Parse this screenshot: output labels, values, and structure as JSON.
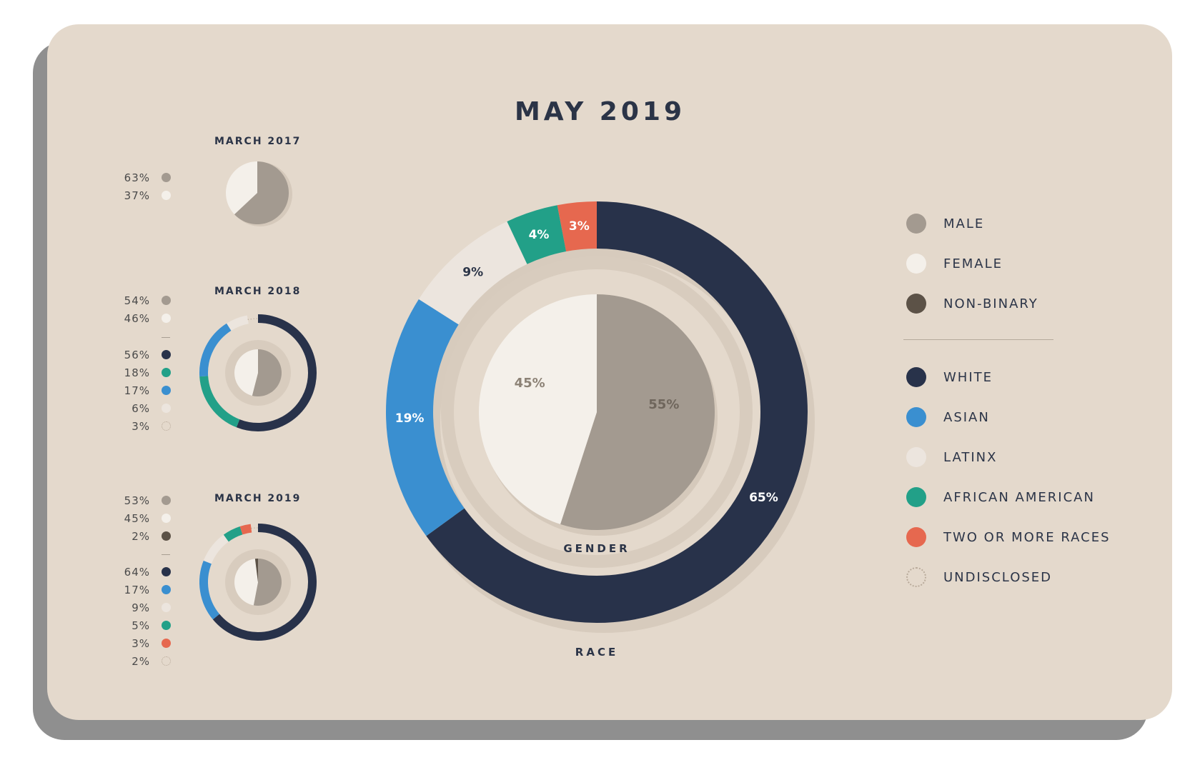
{
  "title": "MAY 2019",
  "colors": {
    "male": "#a39a90",
    "female": "#f4f0ea",
    "non_binary": "#5c5247",
    "white": "#28324a",
    "asian": "#3a8fd0",
    "latinx": "#ece5de",
    "african_american": "#22a088",
    "two_or_more": "#e6684f",
    "undisclosed": "#d9cfc4",
    "background": "#e4d9cc"
  },
  "legend": {
    "gender": [
      {
        "label": "MALE",
        "color": "#a39a90"
      },
      {
        "label": "FEMALE",
        "color": "#f4f0ea"
      },
      {
        "label": "NON-BINARY",
        "color": "#5c5247"
      }
    ],
    "race": [
      {
        "label": "WHITE",
        "color": "#28324a"
      },
      {
        "label": "ASIAN",
        "color": "#3a8fd0"
      },
      {
        "label": "LATINX",
        "color": "#ece5de"
      },
      {
        "label": "AFRICAN AMERICAN",
        "color": "#22a088"
      },
      {
        "label": "TWO OR MORE RACES",
        "color": "#e6684f"
      },
      {
        "label": "UNDISCLOSED",
        "icon": "dotted-circle-icon"
      }
    ]
  },
  "chart_data": [
    {
      "type": "pie",
      "title": "MAY 2019",
      "gender": {
        "label": "GENDER",
        "slices": [
          {
            "name": "MALE",
            "value": 55,
            "label": "55%"
          },
          {
            "name": "FEMALE",
            "value": 45,
            "label": "45%"
          }
        ]
      },
      "race": {
        "label": "RACE",
        "slices": [
          {
            "name": "WHITE",
            "value": 65,
            "label": "65%"
          },
          {
            "name": "ASIAN",
            "value": 19,
            "label": "19%"
          },
          {
            "name": "LATINX",
            "value": 9,
            "label": "9%"
          },
          {
            "name": "AFRICAN AMERICAN",
            "value": 4,
            "label": "4%"
          },
          {
            "name": "TWO OR MORE RACES",
            "value": 3,
            "label": "3%"
          }
        ]
      }
    },
    {
      "type": "pie",
      "title": "MARCH 2017",
      "gender": [
        {
          "name": "MALE",
          "value": 63,
          "label": "63%"
        },
        {
          "name": "FEMALE",
          "value": 37,
          "label": "37%"
        }
      ]
    },
    {
      "type": "pie",
      "title": "MARCH 2018",
      "gender": [
        {
          "name": "MALE",
          "value": 54,
          "label": "54%"
        },
        {
          "name": "FEMALE",
          "value": 46,
          "label": "46%"
        }
      ],
      "race": [
        {
          "name": "WHITE",
          "value": 56,
          "label": "56%"
        },
        {
          "name": "AFRICAN AMERICAN",
          "value": 18,
          "label": "18%"
        },
        {
          "name": "ASIAN",
          "value": 17,
          "label": "17%"
        },
        {
          "name": "LATINX",
          "value": 6,
          "label": "6%"
        },
        {
          "name": "UNDISCLOSED",
          "value": 3,
          "label": "3%"
        }
      ]
    },
    {
      "type": "pie",
      "title": "MARCH 2019",
      "gender": [
        {
          "name": "MALE",
          "value": 53,
          "label": "53%"
        },
        {
          "name": "FEMALE",
          "value": 45,
          "label": "45%"
        },
        {
          "name": "NON-BINARY",
          "value": 2,
          "label": "2%"
        }
      ],
      "race": [
        {
          "name": "WHITE",
          "value": 64,
          "label": "64%"
        },
        {
          "name": "ASIAN",
          "value": 17,
          "label": "17%"
        },
        {
          "name": "LATINX",
          "value": 9,
          "label": "9%"
        },
        {
          "name": "AFRICAN AMERICAN",
          "value": 5,
          "label": "5%"
        },
        {
          "name": "TWO OR MORE RACES",
          "value": 3,
          "label": "3%"
        },
        {
          "name": "UNDISCLOSED",
          "value": 2,
          "label": "2%"
        }
      ]
    }
  ]
}
